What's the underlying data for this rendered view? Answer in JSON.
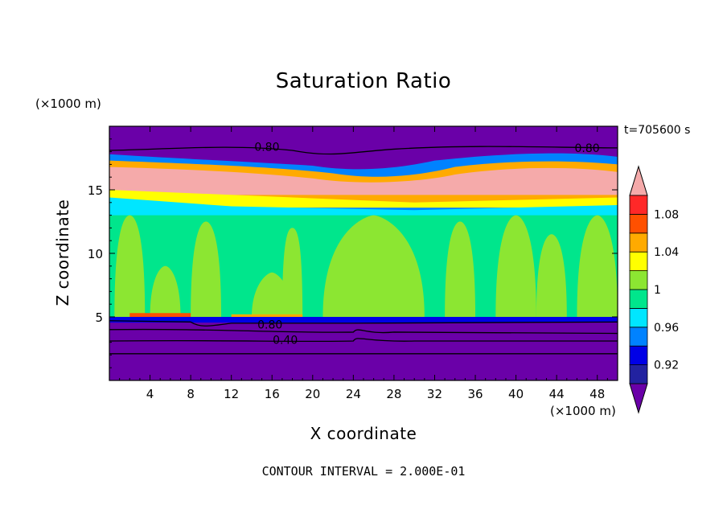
{
  "chart_data": {
    "type": "heatmap",
    "title": "Saturation Ratio",
    "xlabel": "X coordinate",
    "ylabel": "Z coordinate",
    "x_unit_label": "(×1000 m)",
    "y_unit_label": "(×1000 m)",
    "time_label": "t=705600 s",
    "footer": "CONTOUR INTERVAL = 2.000E-01",
    "xlim": [
      0,
      50
    ],
    "ylim": [
      0,
      20
    ],
    "x_ticks": [
      4,
      8,
      12,
      16,
      20,
      24,
      28,
      32,
      36,
      40,
      44,
      48
    ],
    "y_ticks": [
      5,
      10,
      15
    ],
    "contour_labels": [
      "0.80",
      "0.80",
      "0.80",
      "0.40"
    ],
    "colorbar": {
      "tick_labels": [
        "0.92",
        "0.96",
        "1",
        "1.04",
        "1.08"
      ],
      "levels": [
        0.9,
        0.92,
        0.94,
        0.96,
        0.98,
        1.0,
        1.02,
        1.04,
        1.06,
        1.08,
        1.1
      ],
      "colors": [
        "#6a00a8",
        "#2222a0",
        "#0000e6",
        "#0082ff",
        "#00e6ff",
        "#00e68c",
        "#8ce632",
        "#ffff00",
        "#ffaa00",
        "#ff5000",
        "#ff2828",
        "#f5aaaa"
      ],
      "over_color": "#f5aaaa",
      "under_color": "#6a00a8"
    }
  }
}
